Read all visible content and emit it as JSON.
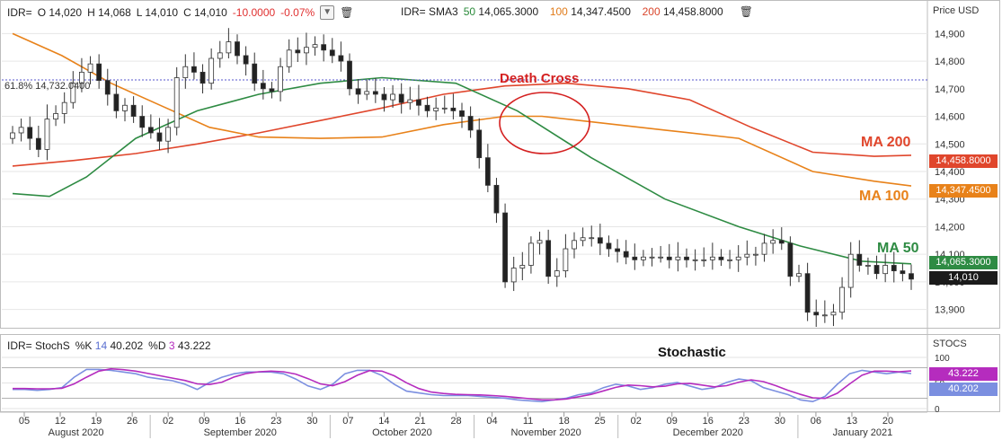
{
  "price_header": {
    "symbol": "IDR=",
    "open_label": "O",
    "open": "14,020",
    "high_label": "H",
    "high": "14,068",
    "low_label": "L",
    "low": "14,010",
    "close_label": "C",
    "close": "14,010",
    "change": "-10.0000",
    "change_pct": "-0.07%",
    "dropdown_icon": "chevron-down-icon",
    "delete_icon": "trash-icon"
  },
  "sma_header": {
    "symbol": "IDR=",
    "study": "SMA3",
    "p1": "50",
    "v1": "14,065.3000",
    "p2": "100",
    "v2": "14,347.4500",
    "p3": "200",
    "v3": "14,458.8000"
  },
  "stoch_header": {
    "symbol": "IDR=",
    "study": "StochS",
    "k_label": "%K",
    "k_period": "14",
    "k_value": "40.202",
    "d_label": "%D",
    "d_period": "3",
    "d_value": "43.222"
  },
  "fib_label": "61.8%  14,732.0400",
  "colors": {
    "ma50": "#2e8b43",
    "ma100": "#e8821a",
    "ma200": "#e0462c",
    "k": "#7b8fe0",
    "d": "#b52cbe",
    "candle_up": "#ffffff",
    "candle_down": "#222222",
    "fib": "#5555cc",
    "circle": "#d42020"
  },
  "chart_data": [
    {
      "type": "candlestick",
      "title": "IDR= daily price with SMA 50 / 100 / 200",
      "axis_title": "Price USD",
      "y_ticks": [
        "13,900",
        "14,000",
        "14,100",
        "14,200",
        "14,300",
        "14,400",
        "14,500",
        "14,600",
        "14,700",
        "14,800",
        "14,900"
      ],
      "ylim": [
        13850,
        14950
      ],
      "x_ticks": [
        "05",
        "12",
        "19",
        "26",
        "02",
        "09",
        "16",
        "23",
        "30",
        "07",
        "14",
        "21",
        "28",
        "04",
        "11",
        "18",
        "25",
        "02",
        "09",
        "16",
        "23",
        "30",
        "06",
        "13",
        "20"
      ],
      "months": [
        "August 2020",
        "September 2020",
        "October 2020",
        "November 2020",
        "December 2020",
        "January 2021"
      ],
      "series": [
        {
          "name": "Close",
          "values": [
            14540,
            14560,
            14520,
            14480,
            14590,
            14610,
            14650,
            14720,
            14760,
            14790,
            14730,
            14680,
            14620,
            14640,
            14600,
            14560,
            14540,
            14510,
            14560,
            14740,
            14780,
            14760,
            14720,
            14810,
            14830,
            14870,
            14820,
            14790,
            14720,
            14700,
            14690,
            14780,
            14840,
            14830,
            14850,
            14860,
            14840,
            14820,
            14800,
            14700,
            14680,
            14690,
            14680,
            14660,
            14680,
            14650,
            14660,
            14640,
            14620,
            14630,
            14630,
            14620,
            14600,
            14550,
            14450,
            14350,
            14250,
            14000,
            14050,
            14060,
            14140,
            14150,
            14020,
            14040,
            14120,
            14150,
            14160,
            14160,
            14140,
            14120,
            14110,
            14090,
            14080,
            14090,
            14090,
            14090,
            14080,
            14090,
            14080,
            14080,
            14080,
            14090,
            14080,
            14080,
            14090,
            14100,
            14100,
            14140,
            14150,
            14140,
            14020,
            14030,
            13890,
            13880,
            13880,
            13890,
            13980,
            14100,
            14060,
            14060,
            14030,
            14060,
            14040,
            14030,
            14010
          ]
        },
        {
          "name": "MA 50",
          "label": "MA 50",
          "last": 14065.3
        },
        {
          "name": "MA 100",
          "label": "MA 100",
          "last": 14347.45
        },
        {
          "name": "MA 200",
          "label": "MA 200",
          "last": 14458.8
        }
      ],
      "annotations": [
        "Death Cross"
      ]
    },
    {
      "type": "line",
      "title": "Stochastic",
      "axis_title": "STOCS",
      "y_ticks": [
        "0",
        "50",
        "100"
      ],
      "ylim": [
        0,
        100
      ],
      "series": [
        {
          "name": "%K",
          "last": 40.202
        },
        {
          "name": "%D",
          "last": 43.222
        }
      ]
    }
  ],
  "labels": {
    "death_cross": "Death Cross",
    "ma200": "MA 200",
    "ma100": "MA 100",
    "ma50": "MA 50",
    "stochastic": "Stochastic"
  }
}
